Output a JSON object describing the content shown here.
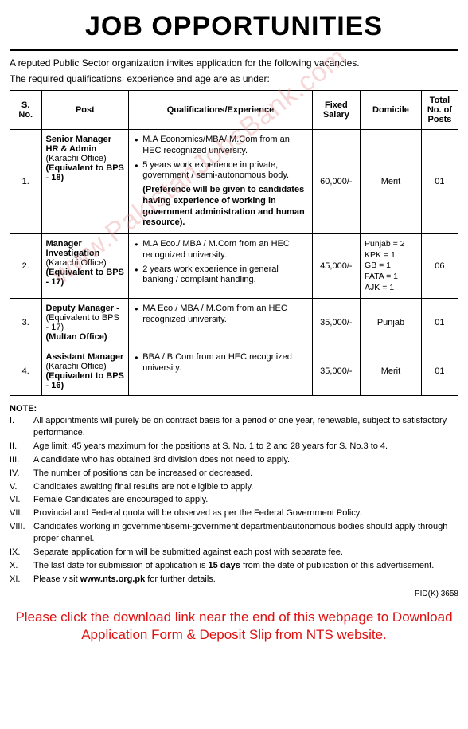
{
  "header": "JOB OPPORTUNITIES",
  "intro_line1": "A reputed Public Sector organization invites application for the following vacancies.",
  "intro_line2": "The required qualifications, experience and age are as under:",
  "table": {
    "headers": {
      "sno": "S. No.",
      "post": "Post",
      "qual": "Qualifications/Experience",
      "salary": "Fixed Salary",
      "domicile": "Domicile",
      "total": "Total No. of Posts"
    },
    "rows": [
      {
        "sno": "1.",
        "post_title": "Senior Manager HR & Admin",
        "post_sub1": "(Karachi Office)",
        "post_sub2": "(Equivalent to BPS - 18)",
        "qual": [
          "M.A Economics/MBA/ M.Com from an HEC recognized university.",
          "5 years work experience in private, government / semi-autonomous body."
        ],
        "qual_bold": "(Preference will be given to candidates having experience of working in government administration and human resource).",
        "salary": "60,000/-",
        "domicile": "Merit",
        "domicile_multi": false,
        "total": "01"
      },
      {
        "sno": "2.",
        "post_title": "Manager Investigation",
        "post_sub1": "(Karachi Office)",
        "post_sub2": "(Equivalent to BPS - 17)",
        "qual": [
          "M.A Eco./ MBA / M.Com from an HEC recognized university.",
          "2 years work experience in general banking / complaint handling."
        ],
        "qual_bold": "",
        "salary": "45,000/-",
        "domicile": "Punjab = 2\nKPK = 1\nGB = 1\nFATA = 1\nAJK = 1",
        "domicile_multi": true,
        "total": "06"
      },
      {
        "sno": "3.",
        "post_title": "Deputy Manager -",
        "post_sub1": "(Equivalent to BPS - 17)",
        "post_sub2": "(Multan Office)",
        "qual": [
          "MA Eco./ MBA / M.Com from an HEC recognized university."
        ],
        "qual_bold": "",
        "salary": "35,000/-",
        "domicile": "Punjab",
        "domicile_multi": false,
        "total": "01"
      },
      {
        "sno": "4.",
        "post_title": "Assistant Manager",
        "post_sub1": "(Karachi Office)",
        "post_sub2": "(Equivalent to BPS - 16)",
        "qual": [
          "BBA / B.Com from an HEC recognized university."
        ],
        "qual_bold": "",
        "salary": "35,000/-",
        "domicile": "Merit",
        "domicile_multi": false,
        "total": "01"
      }
    ]
  },
  "note_header": "NOTE:",
  "notes": [
    {
      "num": "I.",
      "text": "All appointments will purely be on contract basis for a period of one year, renewable, subject to satisfactory performance."
    },
    {
      "num": "II.",
      "text": "Age limit: 45 years maximum for the positions at S. No. 1 to 2 and 28 years for S. No.3 to 4."
    },
    {
      "num": "III.",
      "text": "A candidate who has obtained 3rd division does not need to apply."
    },
    {
      "num": "IV.",
      "text": "The number of positions can be increased or decreased."
    },
    {
      "num": "V.",
      "text": "Candidates awaiting final results are not eligible to apply."
    },
    {
      "num": "VI.",
      "text": "Female Candidates are encouraged to apply."
    },
    {
      "num": "VII.",
      "text": "Provincial and Federal quota will be observed as per the Federal Government Policy."
    },
    {
      "num": "VIII.",
      "text": "Candidates working in government/semi-government department/autonomous bodies should apply through proper channel."
    },
    {
      "num": "IX.",
      "text": "Separate application form will be submitted against each post with separate fee."
    },
    {
      "num": "X.",
      "text": "The last date for submission of application is 15 days from the date of publication of this advertisement.",
      "bold_part": "15 days"
    },
    {
      "num": "XI.",
      "text": "Please visit www.nts.org.pk for further details.",
      "bold_part": "www.nts.org.pk"
    }
  ],
  "pid": "PID(K) 3658",
  "footer": "Please click the download link near the end of this webpage to Download Application Form & Deposit Slip from NTS website.",
  "watermark": "www.PakistanJobsBank.com"
}
